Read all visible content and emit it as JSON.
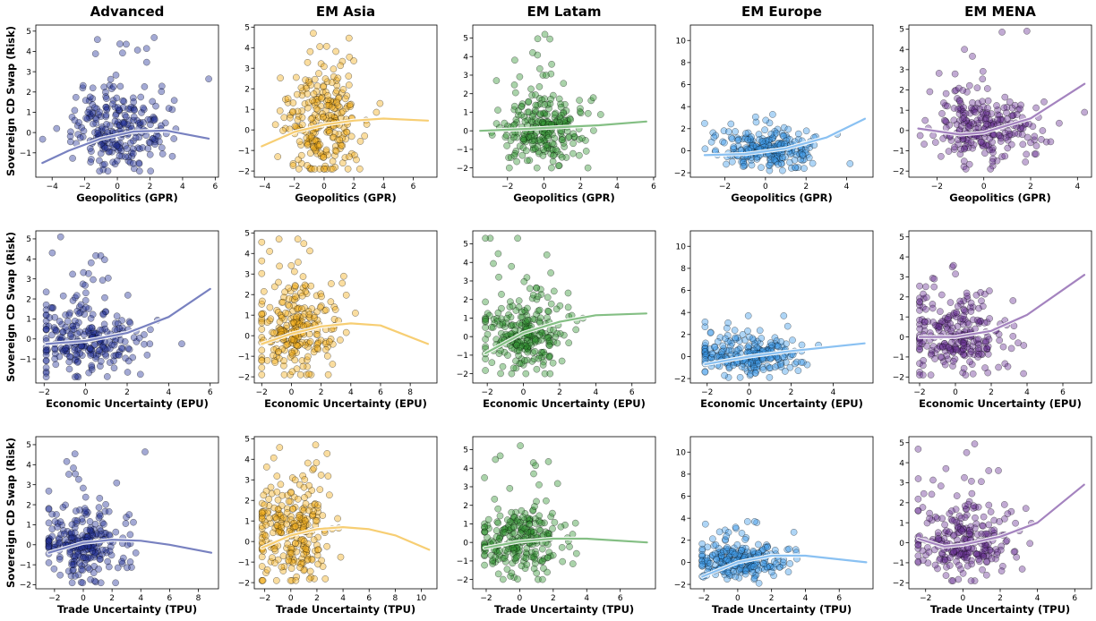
{
  "figure": {
    "columns": [
      "Advanced",
      "EM Asia",
      "EM Latam",
      "EM Europe",
      "EM MENA"
    ],
    "ylabel": "Sovereign CD Swap (Risk)",
    "row_xlabels": [
      "Geopolitics (GPR)",
      "Economic Uncertainty (EPU)",
      "Trade Uncertainty (TPU)"
    ]
  },
  "chart_data": [
    {
      "type": "scatter",
      "row": 0,
      "col": 0,
      "title": "Advanced",
      "xlabel": "Geopolitics (GPR)",
      "ylabel": "Sovereign CD Swap (Risk)",
      "color": "#0a1a8c",
      "xlim": [
        -5,
        6.2
      ],
      "ylim": [
        -2.2,
        5.3
      ],
      "xticks": [
        -4,
        -2,
        0,
        2,
        4,
        6
      ],
      "yticks": [
        -1,
        0,
        1,
        2,
        3,
        4,
        5
      ],
      "cloud": {
        "cx": 0,
        "sx": 1.3,
        "cy": 0,
        "sy": 0.9,
        "xmin": -4.6,
        "xmax": 5.6,
        "ymin": -1.9,
        "ymax": 5.1
      },
      "fit": [
        [
          -4.6,
          -1.5
        ],
        [
          -3,
          -0.9
        ],
        [
          -1,
          -0.3
        ],
        [
          1,
          0.05
        ],
        [
          3,
          0.1
        ],
        [
          5.6,
          -0.3
        ]
      ]
    },
    {
      "type": "scatter",
      "row": 0,
      "col": 1,
      "title": "EM Asia",
      "xlabel": "Geopolitics (GPR)",
      "ylabel": "",
      "color": "#f0a500",
      "xlim": [
        -4.7,
        7.6
      ],
      "ylim": [
        -2.3,
        5.1
      ],
      "xticks": [
        -4,
        -2,
        0,
        2,
        4,
        6
      ],
      "yticks": [
        -2,
        -1,
        0,
        1,
        2,
        3,
        4,
        5
      ],
      "cloud": {
        "cx": 0,
        "sx": 1.2,
        "cy": 0.3,
        "sy": 1.2,
        "xmin": -4.2,
        "xmax": 7.1,
        "ymin": -1.9,
        "ymax": 4.7
      },
      "fit": [
        [
          -4.2,
          -0.8
        ],
        [
          -2,
          -0.1
        ],
        [
          0,
          0.25
        ],
        [
          2,
          0.45
        ],
        [
          4,
          0.55
        ],
        [
          7,
          0.45
        ]
      ]
    },
    {
      "type": "scatter",
      "row": 0,
      "col": 2,
      "title": "EM Latam",
      "xlabel": "Geopolitics (GPR)",
      "ylabel": "",
      "color": "#1f8a1f",
      "xlim": [
        -3.9,
        6.1
      ],
      "ylim": [
        -2.5,
        5.7
      ],
      "xticks": [
        -2,
        0,
        2,
        4,
        6
      ],
      "yticks": [
        -2,
        -1,
        0,
        1,
        2,
        3,
        4,
        5
      ],
      "cloud": {
        "cx": 0,
        "sx": 1.0,
        "cy": 0,
        "sy": 0.9,
        "xmin": -3.5,
        "xmax": 5.6,
        "ymin": -2.0,
        "ymax": 5.2
      },
      "fit": [
        [
          -3.5,
          0
        ],
        [
          -1,
          0.1
        ],
        [
          1,
          0.2
        ],
        [
          3,
          0.3
        ],
        [
          5.6,
          0.5
        ]
      ]
    },
    {
      "type": "scatter",
      "row": 0,
      "col": 3,
      "title": "EM Europe",
      "xlabel": "Geopolitics (GPR)",
      "ylabel": "",
      "color": "#2a8fe8",
      "xlim": [
        -3.7,
        5.3
      ],
      "ylim": [
        -2.4,
        11.4
      ],
      "xticks": [
        -2,
        0,
        2,
        4
      ],
      "yticks": [
        -2,
        0,
        2,
        4,
        6,
        8,
        10
      ],
      "cloud": {
        "cx": 0,
        "sx": 1.1,
        "cy": 0,
        "sy": 0.8,
        "xmin": -3.0,
        "xmax": 4.9,
        "ymin": -1.8,
        "ymax": 3.5
      },
      "fit": [
        [
          -3,
          -0.4
        ],
        [
          -1,
          -0.3
        ],
        [
          1,
          0.2
        ],
        [
          3,
          1.2
        ],
        [
          4.9,
          2.9
        ]
      ]
    },
    {
      "type": "scatter",
      "row": 0,
      "col": 4,
      "title": "EM MENA",
      "xlabel": "Geopolitics (GPR)",
      "ylabel": "",
      "color": "#5a1e8a",
      "xlim": [
        -3.2,
        4.6
      ],
      "ylim": [
        -2.3,
        5.2
      ],
      "xticks": [
        -2,
        0,
        2,
        4
      ],
      "yticks": [
        -2,
        -1,
        0,
        1,
        2,
        3,
        4,
        5
      ],
      "cloud": {
        "cx": 0,
        "sx": 1.0,
        "cy": 0,
        "sy": 0.9,
        "xmin": -2.8,
        "xmax": 4.3,
        "ymin": -1.9,
        "ymax": 4.9
      },
      "fit": [
        [
          -2.8,
          0.1
        ],
        [
          -1,
          -0.2
        ],
        [
          0,
          -0.1
        ],
        [
          2,
          0.6
        ],
        [
          4.3,
          2.3
        ]
      ]
    },
    {
      "type": "scatter",
      "row": 1,
      "col": 0,
      "title": "",
      "xlabel": "Economic Uncertainty (EPU)",
      "ylabel": "Sovereign CD Swap (Risk)",
      "color": "#0a1a8c",
      "xlim": [
        -2.4,
        6.4
      ],
      "ylim": [
        -2.2,
        5.4
      ],
      "xticks": [
        -2,
        0,
        2,
        4,
        6
      ],
      "yticks": [
        -1,
        0,
        1,
        2,
        3,
        4,
        5
      ],
      "cloud": {
        "cx": 0,
        "sx": 1.2,
        "cy": 0,
        "sy": 0.9,
        "xmin": -1.9,
        "xmax": 6.0,
        "ymin": -1.9,
        "ymax": 5.1
      },
      "fit": [
        [
          -1.9,
          -0.25
        ],
        [
          0,
          -0.1
        ],
        [
          2,
          0.3
        ],
        [
          4,
          1.1
        ],
        [
          6,
          2.5
        ]
      ]
    },
    {
      "type": "scatter",
      "row": 1,
      "col": 1,
      "title": "",
      "xlabel": "Economic Uncertainty (EPU)",
      "ylabel": "",
      "color": "#f0a500",
      "xlim": [
        -2.5,
        9.8
      ],
      "ylim": [
        -2.3,
        5.1
      ],
      "xticks": [
        -2,
        0,
        2,
        4,
        6,
        8
      ],
      "yticks": [
        -2,
        -1,
        0,
        1,
        2,
        3,
        4,
        5
      ],
      "cloud": {
        "cx": 0.2,
        "sx": 1.2,
        "cy": 0.2,
        "sy": 1.2,
        "xmin": -2.0,
        "xmax": 9.2,
        "ymin": -1.9,
        "ymax": 4.7
      },
      "fit": [
        [
          -2,
          -0.4
        ],
        [
          0,
          0.1
        ],
        [
          2,
          0.45
        ],
        [
          4,
          0.6
        ],
        [
          6,
          0.5
        ],
        [
          9.2,
          -0.4
        ]
      ]
    },
    {
      "type": "scatter",
      "row": 1,
      "col": 2,
      "title": "",
      "xlabel": "Economic Uncertainty (EPU)",
      "ylabel": "",
      "color": "#1f8a1f",
      "xlim": [
        -2.8,
        7.3
      ],
      "ylim": [
        -2.5,
        5.7
      ],
      "xticks": [
        -2,
        0,
        2,
        4,
        6
      ],
      "yticks": [
        -2,
        -1,
        0,
        1,
        2,
        3,
        4,
        5
      ],
      "cloud": {
        "cx": 0,
        "sx": 1.0,
        "cy": 0,
        "sy": 0.9,
        "xmin": -2.1,
        "xmax": 6.8,
        "ymin": -2.0,
        "ymax": 5.3
      },
      "fit": [
        [
          -2.1,
          -0.9
        ],
        [
          0,
          0.2
        ],
        [
          2,
          0.8
        ],
        [
          4,
          1.15
        ],
        [
          6.8,
          1.25
        ]
      ]
    },
    {
      "type": "scatter",
      "row": 1,
      "col": 3,
      "title": "",
      "xlabel": "Economic Uncertainty (EPU)",
      "ylabel": "",
      "color": "#2a8fe8",
      "xlim": [
        -2.8,
        5.9
      ],
      "ylim": [
        -2.4,
        11.4
      ],
      "xticks": [
        -2,
        0,
        2,
        4
      ],
      "yticks": [
        -2,
        0,
        2,
        4,
        6,
        8,
        10
      ],
      "cloud": {
        "cx": 0,
        "sx": 1.1,
        "cy": 0,
        "sy": 0.8,
        "xmin": -2.1,
        "xmax": 5.5,
        "ymin": -1.9,
        "ymax": 3.7
      },
      "fit": [
        [
          -2.1,
          -0.7
        ],
        [
          0,
          0
        ],
        [
          2,
          0.5
        ],
        [
          5.5,
          1.2
        ]
      ]
    },
    {
      "type": "scatter",
      "row": 1,
      "col": 4,
      "title": "",
      "xlabel": "Economic Uncertainty (EPU)",
      "ylabel": "",
      "color": "#5a1e8a",
      "xlim": [
        -2.6,
        7.6
      ],
      "ylim": [
        -2.3,
        5.3
      ],
      "xticks": [
        -2,
        0,
        2,
        4,
        6
      ],
      "yticks": [
        -2,
        -1,
        0,
        1,
        2,
        3,
        4,
        5
      ],
      "cloud": {
        "cx": 0,
        "sx": 1.1,
        "cy": 0,
        "sy": 0.9,
        "xmin": -2.0,
        "xmax": 7.2,
        "ymin": -1.9,
        "ymax": 5.0
      },
      "fit": [
        [
          -2,
          0
        ],
        [
          0,
          0
        ],
        [
          2,
          0.3
        ],
        [
          4,
          1.1
        ],
        [
          7.2,
          3.1
        ]
      ]
    },
    {
      "type": "scatter",
      "row": 2,
      "col": 0,
      "title": "",
      "xlabel": "Trade Uncertainty (TPU)",
      "ylabel": "Sovereign CD Swap (Risk)",
      "color": "#0a1a8c",
      "xlim": [
        -3.3,
        9.4
      ],
      "ylim": [
        -2.2,
        5.4
      ],
      "xticks": [
        -2,
        0,
        2,
        4,
        6,
        8
      ],
      "yticks": [
        -2,
        -1,
        0,
        1,
        2,
        3,
        4,
        5
      ],
      "cloud": {
        "cx": 0,
        "sx": 1.3,
        "cy": 0,
        "sy": 0.9,
        "xmin": -2.4,
        "xmax": 8.9,
        "ymin": -1.9,
        "ymax": 5.1
      },
      "fit": [
        [
          -2.4,
          -0.4
        ],
        [
          0,
          0.1
        ],
        [
          2,
          0.25
        ],
        [
          4,
          0.2
        ],
        [
          6,
          0.0
        ],
        [
          8.9,
          -0.4
        ]
      ]
    },
    {
      "type": "scatter",
      "row": 2,
      "col": 1,
      "title": "",
      "xlabel": "Trade Uncertainty (TPU)",
      "ylabel": "",
      "color": "#f0a500",
      "xlim": [
        -2.8,
        11.2
      ],
      "ylim": [
        -2.3,
        5.1
      ],
      "xticks": [
        -2,
        0,
        2,
        4,
        6,
        8,
        10
      ],
      "yticks": [
        -2,
        -1,
        0,
        1,
        2,
        3,
        4,
        5
      ],
      "cloud": {
        "cx": 0,
        "sx": 1.3,
        "cy": 0.2,
        "sy": 1.2,
        "xmin": -2.2,
        "xmax": 10.6,
        "ymin": -1.9,
        "ymax": 4.7
      },
      "fit": [
        [
          -2.2,
          -0.3
        ],
        [
          0,
          0.3
        ],
        [
          2,
          0.6
        ],
        [
          4,
          0.7
        ],
        [
          6,
          0.6
        ],
        [
          8,
          0.3
        ],
        [
          10.6,
          -0.4
        ]
      ]
    },
    {
      "type": "scatter",
      "row": 2,
      "col": 2,
      "title": "",
      "xlabel": "Trade Uncertainty (TPU)",
      "ylabel": "",
      "color": "#1f8a1f",
      "xlim": [
        -2.8,
        8.1
      ],
      "ylim": [
        -2.5,
        5.7
      ],
      "xticks": [
        -2,
        0,
        2,
        4,
        6
      ],
      "yticks": [
        -2,
        -1,
        0,
        1,
        2,
        3,
        4,
        5
      ],
      "cloud": {
        "cx": 0,
        "sx": 1.1,
        "cy": 0,
        "sy": 0.9,
        "xmin": -2.1,
        "xmax": 7.6,
        "ymin": -2.0,
        "ymax": 5.3
      },
      "fit": [
        [
          -2.1,
          -0.3
        ],
        [
          0,
          0.05
        ],
        [
          2,
          0.2
        ],
        [
          4,
          0.2
        ],
        [
          7.6,
          0.0
        ]
      ]
    },
    {
      "type": "scatter",
      "row": 2,
      "col": 3,
      "title": "",
      "xlabel": "Trade Uncertainty (TPU)",
      "ylabel": "",
      "color": "#2a8fe8",
      "xlim": [
        -2.8,
        8.0
      ],
      "ylim": [
        -2.4,
        11.4
      ],
      "xticks": [
        -2,
        0,
        2,
        4,
        6
      ],
      "yticks": [
        -2,
        0,
        2,
        4,
        6,
        8,
        10
      ],
      "cloud": {
        "cx": 0,
        "sx": 1.2,
        "cy": 0,
        "sy": 0.8,
        "xmin": -2.1,
        "xmax": 7.6,
        "ymin": -1.9,
        "ymax": 3.7
      },
      "fit": [
        [
          -2.1,
          -1.3
        ],
        [
          0,
          0
        ],
        [
          2,
          0.6
        ],
        [
          4,
          0.6
        ],
        [
          7.6,
          0.0
        ]
      ]
    },
    {
      "type": "scatter",
      "row": 2,
      "col": 4,
      "title": "",
      "xlabel": "Trade Uncertainty (TPU)",
      "ylabel": "",
      "color": "#5a1e8a",
      "xlim": [
        -2.9,
        6.9
      ],
      "ylim": [
        -2.3,
        5.3
      ],
      "xticks": [
        -2,
        0,
        2,
        4,
        6
      ],
      "yticks": [
        -2,
        -1,
        0,
        1,
        2,
        3,
        4,
        5
      ],
      "cloud": {
        "cx": 0,
        "sx": 1.1,
        "cy": 0,
        "sy": 0.9,
        "xmin": -2.4,
        "xmax": 6.5,
        "ymin": -1.9,
        "ymax": 5.0
      },
      "fit": [
        [
          -2.4,
          0.2
        ],
        [
          -1,
          -0.2
        ],
        [
          0,
          -0.1
        ],
        [
          2,
          0.3
        ],
        [
          4,
          1.0
        ],
        [
          6.5,
          2.9
        ]
      ]
    }
  ]
}
